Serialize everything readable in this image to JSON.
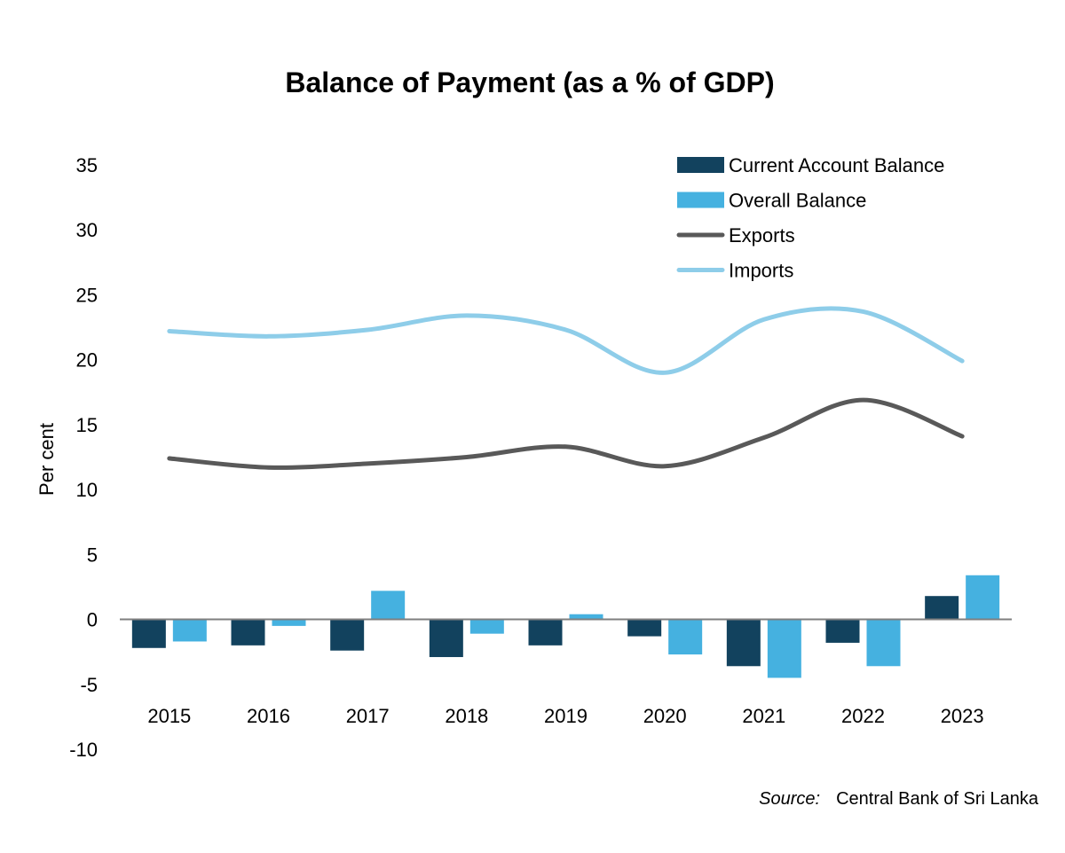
{
  "chart_data": {
    "type": "bar",
    "title": "Balance of Payment (as a % of GDP)",
    "ylabel": "Per cent",
    "xlabel": "",
    "ylim": [
      -10,
      35
    ],
    "yticks": [
      35,
      30,
      25,
      20,
      15,
      10,
      5,
      0,
      -5,
      -10
    ],
    "categories": [
      "2015",
      "2016",
      "2017",
      "2018",
      "2019",
      "2020",
      "2021",
      "2022",
      "2023"
    ],
    "series": [
      {
        "name": "Current Account Balance",
        "type": "bar",
        "color": "#12425e",
        "values": [
          -2.2,
          -2.0,
          -2.4,
          -2.9,
          -2.0,
          -1.3,
          -3.6,
          -1.8,
          1.8
        ]
      },
      {
        "name": "Overall Balance",
        "type": "bar",
        "color": "#45b1e0",
        "values": [
          -1.7,
          -0.5,
          2.2,
          -1.1,
          0.4,
          -2.7,
          -4.5,
          -3.6,
          3.4
        ]
      },
      {
        "name": "Exports",
        "type": "line",
        "color": "#595959",
        "values": [
          12.4,
          11.7,
          12.0,
          12.5,
          13.3,
          11.8,
          14.0,
          16.9,
          14.1
        ]
      },
      {
        "name": "Imports",
        "type": "line",
        "color": "#8ecde9",
        "values": [
          22.2,
          21.8,
          22.3,
          23.4,
          22.3,
          19.0,
          23.1,
          23.7,
          19.9
        ]
      }
    ],
    "legend_position": "top-right",
    "grid": false
  },
  "source": {
    "label": "Source:",
    "text": "Central Bank of Sri Lanka"
  }
}
